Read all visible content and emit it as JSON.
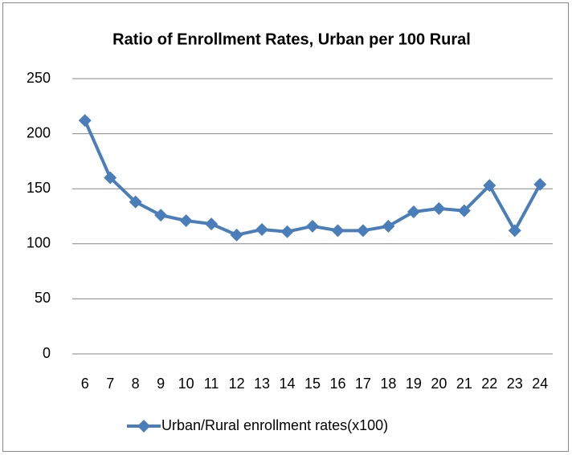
{
  "chart_data": {
    "type": "line",
    "title": "Ratio of Enrollment Rates, Urban per 100 Rural",
    "categories": [
      "6",
      "7",
      "8",
      "9",
      "10",
      "11",
      "12",
      "13",
      "14",
      "15",
      "16",
      "17",
      "18",
      "19",
      "20",
      "21",
      "22",
      "23",
      "24"
    ],
    "series": [
      {
        "name": "Urban/Rural enrollment rates(x100)",
        "color": "#4a7ebb",
        "values": [
          212,
          160,
          138,
          126,
          121,
          118,
          108,
          113,
          111,
          116,
          112,
          112,
          116,
          129,
          132,
          130,
          153,
          112,
          154
        ]
      }
    ],
    "ylim": [
      0,
      250
    ],
    "yticks": [
      0,
      50,
      100,
      150,
      200,
      250
    ],
    "grid": true,
    "legend": "bottom"
  }
}
